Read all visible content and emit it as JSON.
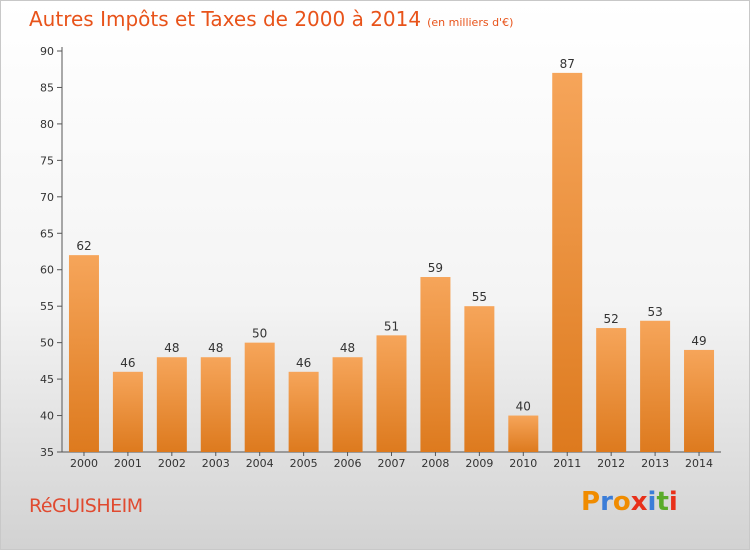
{
  "header": {
    "title": "Autres Impôts et Taxes de 2000 à 2014",
    "subtitle": "(en milliers d'€)"
  },
  "footer": {
    "commune": "RéGUISHEIM",
    "logo_letters": [
      "P",
      "r",
      "o",
      "x",
      "i",
      "t",
      "i"
    ],
    "logo_colors": [
      "#f08c00",
      "#3b7dd8",
      "#f08c00",
      "#e8301a",
      "#3b7dd8",
      "#5aab2a",
      "#e8301a"
    ]
  },
  "chart_data": {
    "type": "bar",
    "title": "Autres Impôts et Taxes de 2000 à 2014",
    "subtitle": "(en milliers d'€)",
    "categories": [
      "2000",
      "2001",
      "2002",
      "2003",
      "2004",
      "2005",
      "2006",
      "2007",
      "2008",
      "2009",
      "2010",
      "2011",
      "2012",
      "2013",
      "2014"
    ],
    "values": [
      62,
      46,
      48,
      48,
      50,
      46,
      48,
      51,
      59,
      55,
      40,
      87,
      52,
      53,
      49
    ],
    "ylim": [
      35,
      90
    ],
    "yticks": [
      35,
      40,
      45,
      50,
      55,
      60,
      65,
      70,
      75,
      80,
      85,
      90
    ],
    "grid": false,
    "colors": {
      "bar_light": "#f6a55a",
      "bar_dark": "#dd7a1e",
      "axis": "#555555"
    }
  }
}
